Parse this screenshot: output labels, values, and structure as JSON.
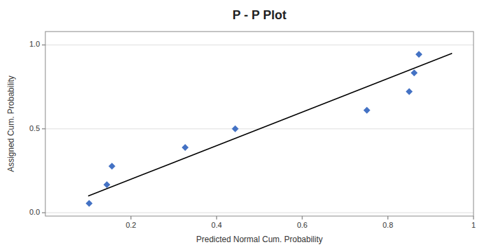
{
  "chart_data": {
    "type": "scatter",
    "title": "P - P Plot",
    "x_label": "Predicted Normal Cum. Probability",
    "y_label": "Assigned Cum. Probability",
    "xlim": [
      0,
      1
    ],
    "xticks": [
      0.2,
      0.4,
      0.6,
      0.8,
      1
    ],
    "ylim": [
      -0.02,
      1.08
    ],
    "yticks": [
      {
        "value": 0,
        "label": "0.0"
      },
      0.5,
      {
        "value": 1,
        "label": "1.0"
      }
    ],
    "grid": "y",
    "series": [
      {
        "type": "line",
        "color": "#000000",
        "x": [
          0.1,
          0.95
        ],
        "values": [
          0.1,
          0.95
        ]
      },
      {
        "type": "scatter",
        "color": "#4472C4",
        "marker": "diamond",
        "x": [
          0.102206229,
          0.143617632,
          0.155532996,
          0.326505044,
          0.443431963,
          0.7508675,
          0.84984097,
          0.861474976,
          0.872479117
        ],
        "values": [
          0.0555556,
          0.1666667,
          0.2777778,
          0.3888889,
          0.5,
          0.6111111,
          0.7222222,
          0.8333333,
          0.9444444
        ]
      }
    ]
  }
}
